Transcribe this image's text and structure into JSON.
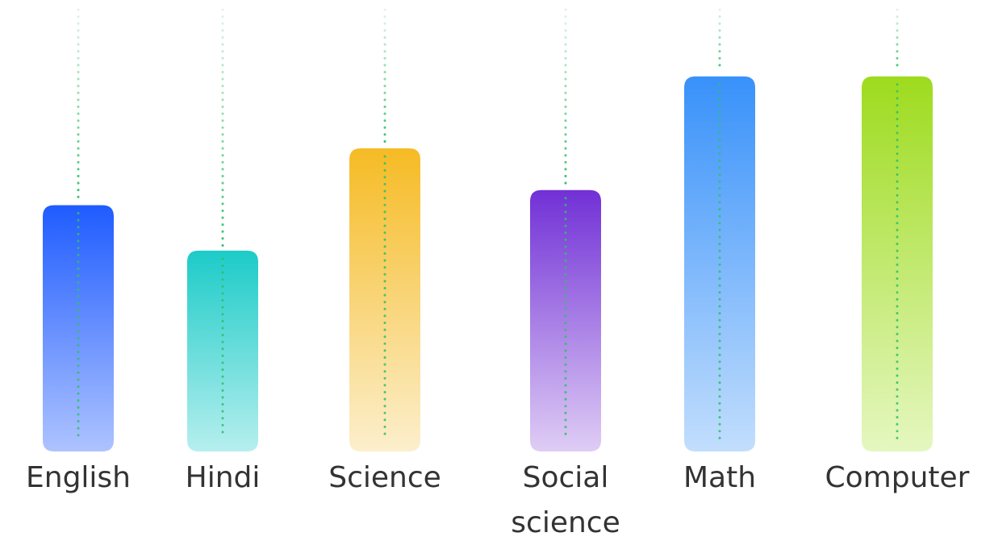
{
  "chart_data": {
    "type": "bar",
    "title": "",
    "xlabel": "",
    "ylabel": "",
    "categories": [
      "English",
      "Hindi",
      "Science",
      "Social science",
      "Math",
      "Computer"
    ],
    "category_label_lines": [
      [
        "English"
      ],
      [
        "Hindi"
      ],
      [
        "Science"
      ],
      [
        "Social",
        "science"
      ],
      [
        "Math"
      ],
      [
        "Computer"
      ]
    ],
    "values": [
      65,
      53,
      80,
      69,
      99,
      99
    ],
    "ylim": [
      0,
      100
    ],
    "grid": false,
    "legend": "none",
    "bar_colors": [
      {
        "top": "#1f5cff",
        "bottom": "#aec3ff"
      },
      {
        "top": "#1ccbc8",
        "bottom": "#b6efee"
      },
      {
        "top": "#f6bb24",
        "bottom": "#fcefcd"
      },
      {
        "top": "#7130d6",
        "bottom": "#dfcdf5"
      },
      {
        "top": "#3891fa",
        "bottom": "#c2defd"
      },
      {
        "top": "#9edb1e",
        "bottom": "#e5f7c0"
      }
    ],
    "guide_line_color": "#2fbf6a",
    "label_color": "#333333"
  }
}
